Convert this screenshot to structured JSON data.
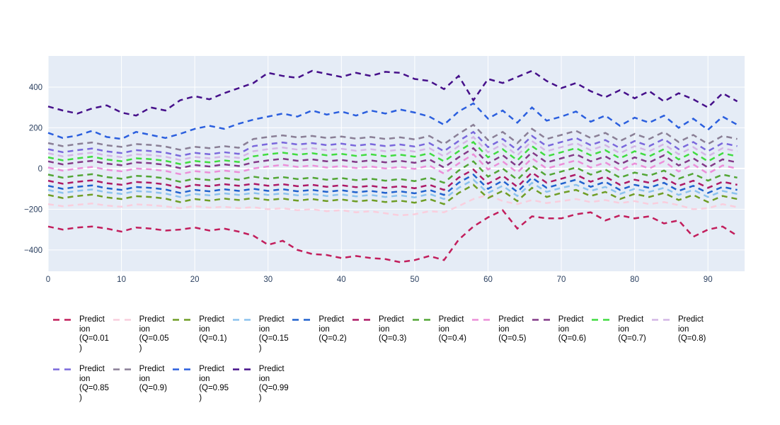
{
  "figure": {
    "page_bg": "#ffffff",
    "plot_bg": "#e5ecf6",
    "grid_color": "#ffffff",
    "tick_label_color": "#2a3f5f",
    "legend_text_color": "#000000"
  },
  "axes": {
    "x_ticks": [
      0,
      10,
      20,
      30,
      40,
      50,
      60,
      70,
      80,
      90
    ],
    "x_tick_labels": [
      "0",
      "10",
      "20",
      "30",
      "40",
      "50",
      "60",
      "70",
      "80",
      "90"
    ],
    "y_ticks": [
      400,
      200,
      0,
      -200,
      -400
    ],
    "y_tick_labels": [
      "400",
      "200",
      "0",
      "−200",
      "−400"
    ]
  },
  "chart_data": {
    "type": "line",
    "line_dash": "dash",
    "title": "",
    "xlabel": "",
    "ylabel": "",
    "x_start": 0,
    "x_step": 2,
    "xlim": [
      0,
      95
    ],
    "ylim": [
      -505,
      553
    ],
    "grid": true,
    "legend_position": "bottom",
    "series": [
      {
        "name": "Prediction (Q=0.01)",
        "q": "Q=0.01",
        "color": "#c21e5c",
        "legend_lines": [
          "Predict",
          "ion",
          "(Q=0.01",
          ")"
        ],
        "values": [
          -285,
          -300,
          -290,
          -285,
          -295,
          -310,
          -290,
          -295,
          -305,
          -300,
          -290,
          -305,
          -295,
          -310,
          -330,
          -375,
          -355,
          -400,
          -420,
          -425,
          -440,
          -430,
          -440,
          -445,
          -460,
          -450,
          -430,
          -450,
          -350,
          -285,
          -240,
          -205,
          -295,
          -235,
          -245,
          -245,
          -225,
          -215,
          -255,
          -230,
          -245,
          -235,
          -270,
          -255,
          -335,
          -300,
          -285,
          -330
        ]
      },
      {
        "name": "Prediction (Q=0.05)",
        "q": "Q=0.05",
        "color": "#f9cedd",
        "legend_lines": [
          "Predict",
          "ion",
          "(Q=0.05",
          ")"
        ],
        "values": [
          -175,
          -185,
          -178,
          -172,
          -182,
          -188,
          -176,
          -180,
          -186,
          -195,
          -185,
          -192,
          -188,
          -195,
          -190,
          -200,
          -195,
          -205,
          -200,
          -210,
          -205,
          -215,
          -210,
          -220,
          -230,
          -225,
          -210,
          -215,
          -185,
          -150,
          -130,
          -160,
          -175,
          -155,
          -170,
          -160,
          -150,
          -165,
          -155,
          -170,
          -160,
          -175,
          -165,
          -180,
          -200,
          -195,
          -175,
          -190
        ]
      },
      {
        "name": "Prediction (Q=0.1)",
        "q": "Q=0.1",
        "color": "#6f9e26",
        "legend_lines": [
          "Predict",
          "ion",
          "(Q=0.1)"
        ],
        "values": [
          -130,
          -145,
          -135,
          -128,
          -142,
          -150,
          -136,
          -140,
          -148,
          -165,
          -150,
          -158,
          -148,
          -155,
          -145,
          -155,
          -148,
          -158,
          -150,
          -160,
          -152,
          -162,
          -155,
          -165,
          -158,
          -168,
          -150,
          -175,
          -120,
          -80,
          -145,
          -110,
          -160,
          -95,
          -140,
          -120,
          -105,
          -135,
          -115,
          -150,
          -125,
          -140,
          -120,
          -155,
          -130,
          -165,
          -135,
          -150
        ]
      },
      {
        "name": "Prediction (Q=0.15)",
        "q": "Q=0.15",
        "color": "#8cc2ee",
        "legend_lines": [
          "Predict",
          "ion",
          "(Q=0.15",
          ")"
        ],
        "values": [
          -105,
          -120,
          -110,
          -103,
          -117,
          -125,
          -111,
          -115,
          -123,
          -140,
          -125,
          -132,
          -122,
          -130,
          -120,
          -130,
          -122,
          -132,
          -125,
          -135,
          -127,
          -137,
          -130,
          -140,
          -132,
          -142,
          -125,
          -150,
          -95,
          -55,
          -120,
          -85,
          -135,
          -70,
          -115,
          -95,
          -80,
          -110,
          -90,
          -125,
          -100,
          -115,
          -95,
          -130,
          -105,
          -140,
          -110,
          -125
        ]
      },
      {
        "name": "Prediction (Q=0.2)",
        "q": "Q=0.2",
        "color": "#2162ce",
        "legend_lines": [
          "Predict",
          "ion",
          "(Q=0.2)"
        ],
        "values": [
          -85,
          -100,
          -90,
          -83,
          -97,
          -105,
          -91,
          -95,
          -103,
          -120,
          -105,
          -112,
          -102,
          -110,
          -100,
          -110,
          -102,
          -112,
          -105,
          -115,
          -107,
          -117,
          -110,
          -120,
          -112,
          -122,
          -105,
          -130,
          -70,
          -30,
          -100,
          -60,
          -115,
          -45,
          -95,
          -75,
          -55,
          -90,
          -65,
          -105,
          -80,
          -95,
          -70,
          -110,
          -85,
          -120,
          -90,
          -105
        ]
      },
      {
        "name": "Prediction (Q=0.3)",
        "q": "Q=0.3",
        "color": "#ad1a66",
        "legend_lines": [
          "Predict",
          "ion",
          "(Q=0.3)"
        ],
        "values": [
          -60,
          -75,
          -65,
          -58,
          -72,
          -80,
          -66,
          -70,
          -78,
          -95,
          -80,
          -87,
          -77,
          -85,
          -75,
          -85,
          -77,
          -87,
          -80,
          -90,
          -82,
          -92,
          -85,
          -95,
          -87,
          -97,
          -80,
          -105,
          -45,
          -5,
          -75,
          -35,
          -90,
          -20,
          -70,
          -50,
          -30,
          -65,
          -40,
          -80,
          -55,
          -70,
          -45,
          -85,
          -60,
          -95,
          -65,
          -80
        ]
      },
      {
        "name": "Prediction (Q=0.4)",
        "q": "Q=0.4",
        "color": "#53a636",
        "legend_lines": [
          "Predict",
          "ion",
          "(Q=0.4)"
        ],
        "values": [
          -30,
          -45,
          -35,
          -28,
          -42,
          -50,
          -36,
          -40,
          -48,
          -65,
          -50,
          -57,
          -47,
          -55,
          -40,
          -50,
          -42,
          -52,
          -45,
          -55,
          -47,
          -57,
          -50,
          -60,
          -52,
          -62,
          -45,
          -70,
          -10,
          35,
          -40,
          0,
          -55,
          15,
          -35,
          -15,
          5,
          -30,
          -5,
          -45,
          -20,
          -35,
          -10,
          -50,
          -25,
          -60,
          -30,
          -45
        ]
      },
      {
        "name": "Prediction (Q=0.5)",
        "q": "Q=0.5",
        "color": "#ec8fd9",
        "legend_lines": [
          "Predict",
          "ion",
          "(Q=0.5)"
        ],
        "values": [
          5,
          -10,
          0,
          8,
          -6,
          -14,
          0,
          -4,
          -12,
          -28,
          -13,
          -20,
          -10,
          -18,
          0,
          10,
          18,
          8,
          15,
          5,
          12,
          2,
          10,
          0,
          8,
          -2,
          15,
          -25,
          25,
          70,
          -5,
          35,
          -20,
          50,
          0,
          20,
          40,
          5,
          30,
          -10,
          25,
          0,
          35,
          -15,
          20,
          -25,
          15,
          0
        ]
      },
      {
        "name": "Prediction (Q=0.6)",
        "q": "Q=0.6",
        "color": "#833a88",
        "legend_lines": [
          "Predict",
          "ion",
          "(Q=0.6)"
        ],
        "values": [
          35,
          20,
          30,
          38,
          24,
          16,
          30,
          26,
          18,
          2,
          17,
          10,
          20,
          12,
          30,
          40,
          48,
          38,
          45,
          35,
          42,
          32,
          40,
          30,
          38,
          28,
          45,
          5,
          55,
          100,
          25,
          65,
          10,
          80,
          30,
          50,
          70,
          35,
          60,
          20,
          55,
          30,
          65,
          15,
          50,
          5,
          45,
          30
        ]
      },
      {
        "name": "Prediction (Q=0.7)",
        "q": "Q=0.7",
        "color": "#41dc41",
        "legend_lines": [
          "Predict",
          "ion",
          "(Q=0.7)"
        ],
        "values": [
          55,
          40,
          50,
          58,
          44,
          36,
          50,
          46,
          38,
          22,
          37,
          30,
          40,
          32,
          60,
          70,
          78,
          68,
          75,
          65,
          72,
          62,
          70,
          60,
          68,
          58,
          75,
          35,
          85,
          130,
          55,
          95,
          40,
          110,
          60,
          80,
          100,
          65,
          90,
          50,
          85,
          60,
          95,
          45,
          80,
          35,
          75,
          60
        ]
      },
      {
        "name": "Prediction (Q=0.8)",
        "q": "Q=0.8",
        "color": "#d4b6e6",
        "legend_lines": [
          "Predict",
          "ion",
          "(Q=0.8)"
        ],
        "values": [
          75,
          60,
          70,
          78,
          64,
          56,
          70,
          66,
          58,
          42,
          57,
          50,
          60,
          52,
          85,
          95,
          103,
          93,
          100,
          90,
          97,
          87,
          95,
          85,
          93,
          83,
          100,
          60,
          110,
          155,
          80,
          120,
          65,
          135,
          85,
          105,
          125,
          90,
          115,
          75,
          110,
          85,
          120,
          70,
          105,
          60,
          100,
          85
        ]
      },
      {
        "name": "Prediction (Q=0.85)",
        "q": "Q=0.85",
        "color": "#7a68dc",
        "legend_lines": [
          "Predict",
          "ion",
          "(Q=0.85",
          ")"
        ],
        "values": [
          95,
          80,
          90,
          98,
          84,
          76,
          90,
          86,
          78,
          62,
          77,
          70,
          80,
          72,
          110,
          120,
          128,
          118,
          125,
          115,
          122,
          112,
          120,
          110,
          118,
          108,
          125,
          85,
          135,
          180,
          105,
          145,
          90,
          160,
          110,
          130,
          150,
          115,
          140,
          100,
          135,
          110,
          145,
          95,
          130,
          85,
          125,
          110
        ]
      },
      {
        "name": "Prediction (Q=0.9)",
        "q": "Q=0.9",
        "color": "#8a7f96",
        "legend_lines": [
          "Predict",
          "ion",
          "(Q=0.9)"
        ],
        "values": [
          125,
          110,
          120,
          128,
          114,
          106,
          120,
          116,
          108,
          92,
          107,
          100,
          110,
          102,
          145,
          155,
          163,
          153,
          160,
          150,
          157,
          147,
          155,
          145,
          153,
          143,
          160,
          120,
          170,
          215,
          140,
          180,
          125,
          195,
          145,
          165,
          185,
          150,
          175,
          135,
          170,
          145,
          180,
          130,
          165,
          120,
          160,
          145
        ]
      },
      {
        "name": "Prediction (Q=0.95)",
        "q": "Q=0.95",
        "color": "#2b5fde",
        "legend_lines": [
          "Predict",
          "ion",
          "(Q=0.95",
          ")"
        ],
        "values": [
          175,
          150,
          162,
          185,
          155,
          145,
          180,
          165,
          150,
          170,
          195,
          210,
          195,
          220,
          240,
          255,
          270,
          255,
          285,
          265,
          280,
          260,
          285,
          270,
          290,
          275,
          255,
          215,
          280,
          320,
          245,
          285,
          225,
          300,
          235,
          255,
          280,
          230,
          260,
          210,
          250,
          225,
          260,
          200,
          245,
          190,
          255,
          215
        ]
      },
      {
        "name": "Prediction (Q=0.99)",
        "q": "Q=0.99",
        "color": "#46108a",
        "legend_lines": [
          "Predict",
          "ion",
          "(Q=0.99",
          ")"
        ],
        "values": [
          305,
          285,
          270,
          295,
          310,
          275,
          260,
          300,
          285,
          335,
          355,
          340,
          370,
          395,
          420,
          470,
          455,
          445,
          480,
          465,
          450,
          470,
          455,
          475,
          470,
          440,
          430,
          390,
          455,
          335,
          440,
          420,
          450,
          480,
          430,
          395,
          420,
          380,
          350,
          385,
          345,
          380,
          330,
          370,
          340,
          300,
          370,
          330
        ]
      }
    ]
  }
}
